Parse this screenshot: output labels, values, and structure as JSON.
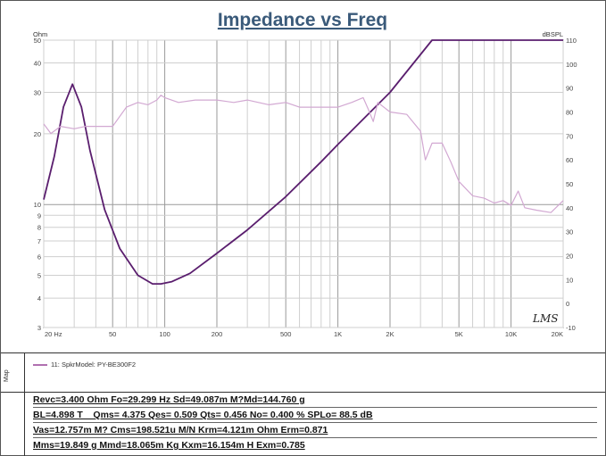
{
  "chart_data": {
    "type": "line",
    "title": "Impedance vs Freq",
    "left_axis": {
      "label": "Ohm",
      "scale": "log",
      "range": [
        3,
        50
      ],
      "ticks": [
        "3",
        "4",
        "5",
        "6",
        "7",
        "8",
        "9",
        "10",
        "20",
        "30",
        "40",
        "50"
      ]
    },
    "right_axis": {
      "label": "dBSPL",
      "scale": "linear",
      "range": [
        -10,
        110
      ],
      "ticks": [
        "-10",
        "0",
        "10",
        "20",
        "30",
        "40",
        "50",
        "60",
        "70",
        "80",
        "90",
        "100",
        "110"
      ]
    },
    "x_axis": {
      "scale": "log",
      "range": [
        20,
        20000
      ],
      "ticks": [
        "20 Hz",
        "50",
        "100",
        "200",
        "500",
        "1K",
        "2K",
        "5K",
        "10K",
        "20K"
      ]
    },
    "grid": true,
    "series": [
      {
        "name": "11: SpkrModel: PY-BE300F2",
        "axis": "left",
        "color": "#5a1e6e",
        "x": [
          20,
          23,
          26,
          29.3,
          33,
          37,
          45,
          55,
          70,
          85,
          95,
          110,
          140,
          200,
          300,
          500,
          800,
          1000,
          2000,
          3500,
          20000
        ],
        "y": [
          10.5,
          16,
          26,
          32.5,
          26,
          17,
          9.5,
          6.5,
          5,
          4.6,
          4.6,
          4.7,
          5.1,
          6.2,
          7.8,
          10.8,
          15.2,
          18,
          30,
          50,
          50
        ]
      },
      {
        "axis": "right",
        "color": "#d2a8d2",
        "x": [
          20,
          22,
          25,
          30,
          35,
          40,
          50,
          60,
          70,
          80,
          90,
          95,
          100,
          120,
          150,
          200,
          250,
          300,
          400,
          500,
          600,
          800,
          1000,
          1200,
          1400,
          1500,
          1600,
          1700,
          2000,
          2500,
          3000,
          3200,
          3500,
          4000,
          4500,
          5000,
          6000,
          7000,
          8000,
          9000,
          10000,
          11000,
          12000,
          14000,
          17000,
          20000
        ],
        "y": [
          75,
          71,
          74,
          73,
          74,
          74,
          74,
          82,
          84,
          83,
          85,
          87,
          86,
          84,
          85,
          85,
          84,
          85,
          83,
          84,
          82,
          82,
          82,
          84,
          86,
          81,
          76,
          84,
          80,
          79,
          72,
          60,
          67,
          67,
          59,
          51,
          45,
          44,
          42,
          43,
          41,
          47,
          40,
          39,
          38,
          43
        ]
      }
    ]
  },
  "legend": {
    "tab_label": "Map",
    "entry": "11: SpkrModel: PY-BE300F2"
  },
  "watermark": "LMS",
  "params": [
    "Revc=3.400 Ohm  Fo=29.299 Hz  Sd=49.087m M?Md=144.760 g",
    "BL=4.898 T _  Qms= 4.375  Qes= 0.509  Qts= 0.456  No= 0.400 %  SPLo= 88.5 dB",
    "Vas=12.757m M? Cms=198.521u M/N  Krm=4.121m Ohm  Erm=0.871",
    "Mms=19.849 g  Mmd=18.065m Kg  Kxm=16.154m H  Exm=0.785"
  ]
}
